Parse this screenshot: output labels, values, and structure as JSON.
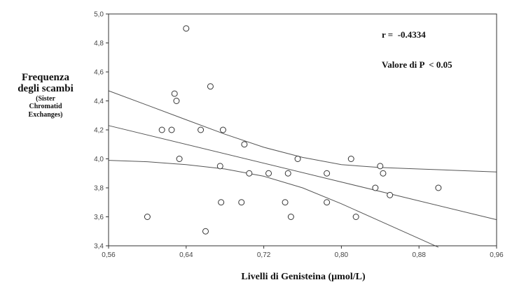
{
  "chart_data": {
    "type": "scatter",
    "ylabel_lines": [
      "Frequenza",
      "degli scambi"
    ],
    "ylabel_sub_lines": [
      "(Sister",
      "Chromatid",
      "Exchanges)"
    ],
    "xlabel": "Livelli di Genisteina  (µmol/L)",
    "xlim": [
      0.56,
      0.96
    ],
    "ylim": [
      3.4,
      5.0
    ],
    "x_ticks": [
      "0,56",
      "0,64",
      "0,72",
      "0,80",
      "0,88",
      "0,96"
    ],
    "y_ticks": [
      "3,4",
      "3,6",
      "3,8",
      "4,0",
      "4,2",
      "4,4",
      "4,6",
      "4,8",
      "5,0"
    ],
    "grid": false,
    "annotations": [
      "r =  -0.4334",
      "Valore di P  < 0.05"
    ],
    "points": [
      {
        "x": 0.6,
        "y": 3.6
      },
      {
        "x": 0.615,
        "y": 4.2
      },
      {
        "x": 0.625,
        "y": 4.2
      },
      {
        "x": 0.628,
        "y": 4.45
      },
      {
        "x": 0.63,
        "y": 4.4
      },
      {
        "x": 0.633,
        "y": 4.0
      },
      {
        "x": 0.64,
        "y": 4.9
      },
      {
        "x": 0.655,
        "y": 4.2
      },
      {
        "x": 0.66,
        "y": 3.5
      },
      {
        "x": 0.665,
        "y": 4.5
      },
      {
        "x": 0.675,
        "y": 3.95
      },
      {
        "x": 0.676,
        "y": 3.7
      },
      {
        "x": 0.678,
        "y": 4.2
      },
      {
        "x": 0.697,
        "y": 3.7
      },
      {
        "x": 0.7,
        "y": 4.1
      },
      {
        "x": 0.705,
        "y": 3.9
      },
      {
        "x": 0.725,
        "y": 3.9
      },
      {
        "x": 0.742,
        "y": 3.7
      },
      {
        "x": 0.745,
        "y": 3.9
      },
      {
        "x": 0.748,
        "y": 3.6
      },
      {
        "x": 0.755,
        "y": 4.0
      },
      {
        "x": 0.785,
        "y": 3.9
      },
      {
        "x": 0.785,
        "y": 3.7
      },
      {
        "x": 0.81,
        "y": 4.0
      },
      {
        "x": 0.815,
        "y": 3.6
      },
      {
        "x": 0.835,
        "y": 3.8
      },
      {
        "x": 0.84,
        "y": 3.95
      },
      {
        "x": 0.843,
        "y": 3.9
      },
      {
        "x": 0.85,
        "y": 3.75
      },
      {
        "x": 0.9,
        "y": 3.8
      }
    ],
    "regression_lines": [
      {
        "role": "fit",
        "x": [
          0.56,
          0.96
        ],
        "y": [
          4.23,
          3.58
        ]
      },
      {
        "role": "upper_ci",
        "x": [
          0.56,
          0.6,
          0.64,
          0.68,
          0.72,
          0.76,
          0.8,
          0.84,
          0.88,
          0.92,
          0.96
        ],
        "y": [
          4.47,
          4.37,
          4.27,
          4.17,
          4.08,
          4.01,
          3.96,
          3.94,
          3.93,
          3.92,
          3.91
        ]
      },
      {
        "role": "lower_ci",
        "x": [
          0.56,
          0.6,
          0.64,
          0.68,
          0.72,
          0.76,
          0.8,
          0.84,
          0.88,
          0.9
        ],
        "y": [
          3.99,
          3.98,
          3.96,
          3.93,
          3.88,
          3.8,
          3.69,
          3.57,
          3.45,
          3.39
        ]
      }
    ]
  }
}
